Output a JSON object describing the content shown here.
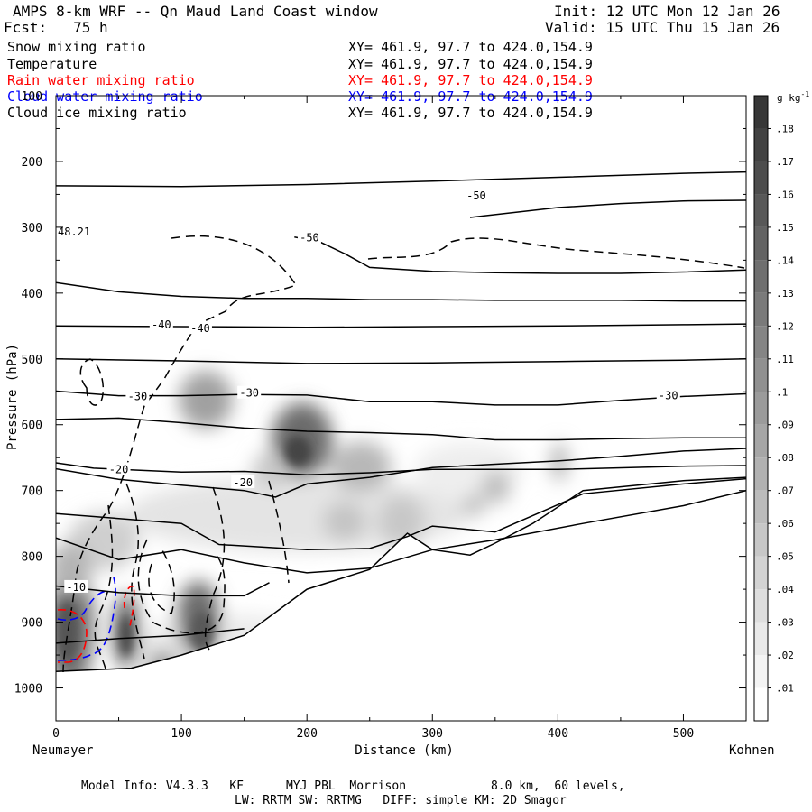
{
  "header": {
    "title": "AMPS 8-km WRF -- Qn Maud Land Coast window",
    "forecast": "Fcst:   75 h",
    "init": "Init: 12 UTC Mon 12 Jan 26",
    "valid": "Valid: 15 UTC Thu 15 Jan 26"
  },
  "legend": {
    "fields": [
      {
        "name": "Snow mixing ratio",
        "xy": "XY= 461.9, 97.7 to 424.0,154.9",
        "color": "#000000"
      },
      {
        "name": "Temperature",
        "xy": "XY= 461.9, 97.7 to 424.0,154.9",
        "color": "#000000"
      },
      {
        "name": "Rain water mixing ratio",
        "xy": "XY= 461.9, 97.7 to 424.0,154.9",
        "color": "#ff0000"
      },
      {
        "name": "Cloud water mixing ratio",
        "xy": "XY= 461.9, 97.7 to 424.0,154.9",
        "color": "#0000ff"
      },
      {
        "name": "Cloud ice mixing ratio",
        "xy": "XY= 461.9, 97.7 to 424.0,154.9",
        "color": "#000000"
      }
    ]
  },
  "chart_data": {
    "type": "cross-section",
    "title": "AMPS 8-km WRF -- Qn Maud Land Coast window",
    "xlabel": "Distance (km)",
    "ylabel": "Pressure (hPa)",
    "xlim": [
      0,
      550
    ],
    "ylim": [
      1050,
      100
    ],
    "x_ticks": [
      0,
      100,
      200,
      300,
      400,
      500
    ],
    "y_ticks": [
      100,
      200,
      300,
      400,
      500,
      600,
      700,
      800,
      900,
      1000
    ],
    "left_end_label": "Neumayer",
    "right_end_label": "Kohnen",
    "marker_label": "48.21",
    "colorbar": {
      "unit": "g kg",
      "unit_exp": "-1",
      "levels": [
        ".01",
        ".02",
        ".03",
        ".04",
        ".05",
        ".06",
        ".07",
        ".08",
        ".09",
        ".1",
        ".11",
        ".12",
        ".13",
        ".14",
        ".15",
        ".16",
        ".17",
        ".18"
      ]
    },
    "temperature_labels": [
      {
        "text": "-50",
        "x": 335,
        "p": 252
      },
      {
        "text": "-50",
        "x": 202,
        "p": 316
      },
      {
        "text": "-40",
        "x": 84,
        "p": 448
      },
      {
        "text": "-40",
        "x": 115,
        "p": 454
      },
      {
        "text": "-30",
        "x": 65,
        "p": 557
      },
      {
        "text": "-30",
        "x": 154,
        "p": 552
      },
      {
        "text": "-30",
        "x": 488,
        "p": 556
      },
      {
        "text": "-20",
        "x": 50,
        "p": 668
      },
      {
        "text": "-20",
        "x": 149,
        "p": 688
      },
      {
        "text": "-10",
        "x": 16,
        "p": 847
      }
    ],
    "temperature_contours": [
      {
        "x": [
          0,
          100,
          200,
          300,
          400,
          500,
          550
        ],
        "p": [
          237,
          238,
          235,
          230,
          224,
          218,
          216
        ]
      },
      {
        "x": [
          330,
          400,
          450,
          500,
          550
        ],
        "p": [
          285,
          270,
          264,
          260,
          259
        ]
      },
      {
        "x": [
          190,
          210,
          230,
          250,
          300,
          350,
          400,
          450,
          500,
          550
        ],
        "p": [
          315,
          322,
          340,
          361,
          367,
          369,
          370,
          370,
          368,
          365
        ]
      },
      {
        "x": [
          0,
          50,
          100,
          150,
          200,
          250,
          300,
          350,
          400,
          450,
          500,
          550
        ],
        "p": [
          384,
          398,
          405,
          408,
          408,
          410,
          410,
          411,
          411,
          411,
          412,
          412
        ]
      },
      {
        "x": [
          0,
          100,
          200,
          300,
          400,
          500,
          550
        ],
        "p": [
          450,
          451,
          452,
          451,
          450,
          448,
          447
        ]
      },
      {
        "x": [
          0,
          100,
          200,
          300,
          400,
          500,
          550
        ],
        "p": [
          500,
          503,
          507,
          506,
          504,
          502,
          500
        ]
      },
      {
        "x": [
          0,
          50,
          100,
          150,
          200,
          250,
          300,
          350,
          400,
          450,
          500,
          550
        ],
        "p": [
          549,
          556,
          556,
          554,
          555,
          565,
          565,
          570,
          570,
          563,
          557,
          553
        ]
      },
      {
        "x": [
          0,
          50,
          100,
          150,
          200,
          250,
          300,
          350,
          400,
          450,
          500,
          550
        ],
        "p": [
          592,
          590,
          597,
          605,
          610,
          612,
          615,
          623,
          623,
          621,
          620,
          620
        ]
      },
      {
        "x": [
          0,
          30,
          100,
          150,
          200,
          250,
          300,
          400,
          500,
          550
        ],
        "p": [
          658,
          666,
          672,
          671,
          676,
          673,
          668,
          668,
          663,
          662
        ]
      },
      {
        "x": [
          0,
          50,
          100,
          150,
          175,
          200,
          250,
          300,
          350,
          400,
          450,
          500,
          550
        ],
        "p": [
          667,
          683,
          692,
          700,
          710,
          690,
          680,
          665,
          660,
          655,
          648,
          640,
          636
        ]
      },
      {
        "x": [
          0,
          100,
          130,
          200,
          250,
          280,
          300,
          350,
          420,
          500,
          550
        ],
        "p": [
          735,
          750,
          782,
          790,
          788,
          770,
          754,
          763,
          705,
          690,
          682
        ]
      },
      {
        "x": [
          0,
          50,
          100,
          150,
          200,
          250,
          300,
          350,
          420,
          500,
          550
        ],
        "p": [
          772,
          805,
          790,
          810,
          825,
          818,
          790,
          775,
          750,
          723,
          700
        ]
      },
      {
        "x": [
          0,
          50,
          100,
          150,
          170
        ],
        "p": [
          845,
          855,
          860,
          860,
          840
        ]
      },
      {
        "x": [
          0,
          50,
          100,
          150
        ],
        "p": [
          932,
          925,
          920,
          910
        ]
      }
    ],
    "terrain": {
      "x": [
        0,
        60,
        100,
        150,
        200,
        250,
        280,
        300,
        330,
        350,
        380,
        420,
        500,
        550
      ],
      "p": [
        975,
        970,
        950,
        920,
        850,
        820,
        765,
        790,
        798,
        780,
        750,
        700,
        685,
        680
      ]
    }
  },
  "footer": {
    "line1": "Model Info: V4.3.3   KF      MYJ PBL  Morrison            8.0 km,  60 levels,",
    "line2": "LW: RRTM SW: RRTMG   DIFF: simple KM: 2D Smagor"
  },
  "colors": {
    "rain": "#ff0000",
    "cloud_water": "#0000ff"
  }
}
